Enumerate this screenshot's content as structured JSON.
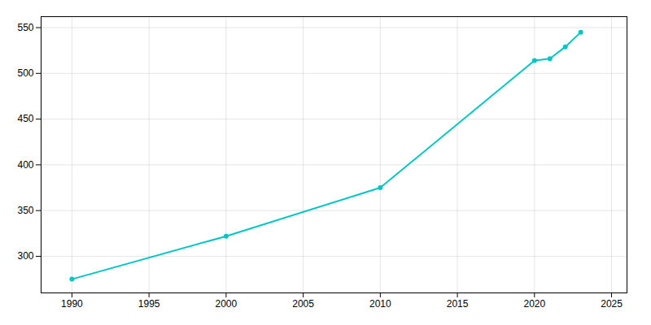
{
  "chart_data": {
    "type": "line",
    "x": [
      1990,
      2000,
      2010,
      2020,
      2021,
      2022,
      2023
    ],
    "values": [
      275,
      322,
      375,
      514,
      516,
      529,
      545
    ],
    "color": "#00C5C5",
    "marker": "circle",
    "xlim": [
      1988,
      2026
    ],
    "xticks": [
      1990,
      1995,
      2000,
      2005,
      2010,
      2015,
      2020,
      2025
    ],
    "ylim": [
      260,
      562
    ],
    "yticks": [
      300,
      350,
      400,
      450,
      500,
      550
    ],
    "grid": true
  }
}
